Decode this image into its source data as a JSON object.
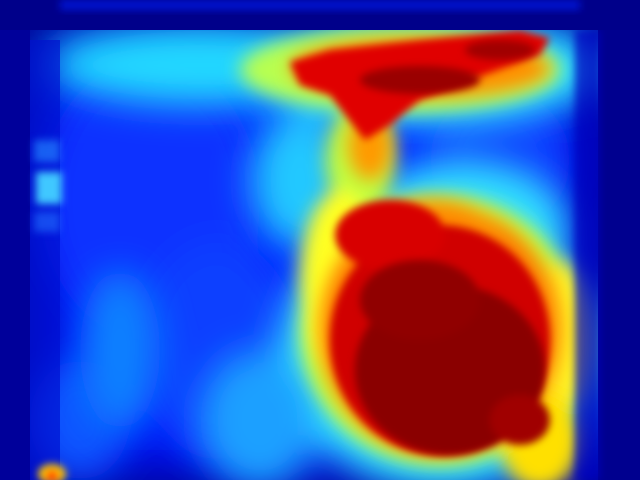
{
  "colormap": {
    "name": "jet",
    "stops": [
      "#00007f",
      "#0000ff",
      "#007fff",
      "#00ffff",
      "#7fff7f",
      "#ffff00",
      "#ff7f00",
      "#ff0000",
      "#7f0000"
    ]
  },
  "background_color": "#00008f"
}
